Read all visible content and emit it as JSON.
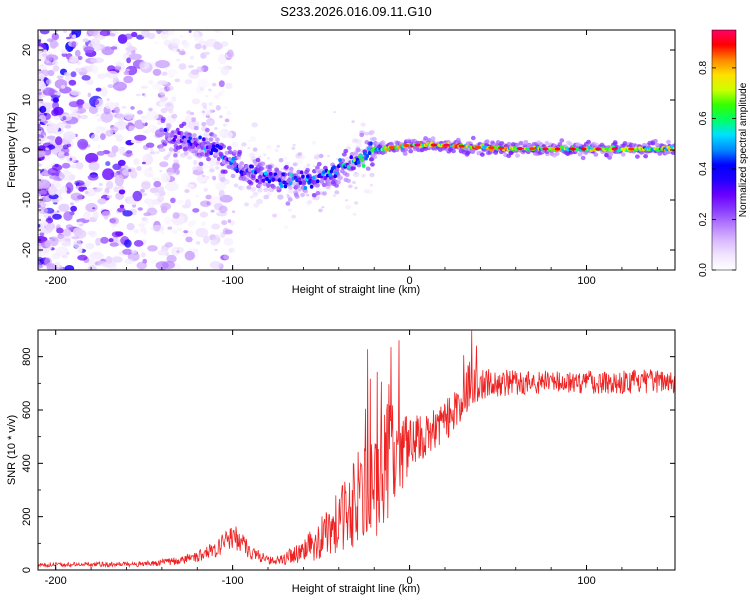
{
  "figure_title": "S233.2026.016.09.11.G10",
  "colors": {
    "snr_line": "#ee2222",
    "axis": "#000000",
    "background": "#ffffff",
    "colormap": [
      "#ffffff",
      "#f0e4ff",
      "#d9b8ff",
      "#b47cff",
      "#8a3cff",
      "#6a00ff",
      "#2200ff",
      "#0000ff",
      "#0088ff",
      "#00e0ff",
      "#00ff66",
      "#33ff00",
      "#ccff00",
      "#ffe000",
      "#ff8800",
      "#ff0000",
      "#ff0066"
    ]
  },
  "chart_data": [
    {
      "type": "heatmap",
      "name": "spectrogram",
      "title": "S233.2026.016.09.11.G10",
      "xlabel": "Height of straight line (km)",
      "ylabel": "Frequency (Hz)",
      "xlim": [
        -210,
        150
      ],
      "ylim": [
        -24,
        24
      ],
      "xticks": [
        -200,
        -100,
        0,
        100
      ],
      "yticks": [
        -20,
        -10,
        0,
        10,
        20
      ],
      "colorbar": {
        "label": "Normalized spectral amplitude",
        "range": [
          0,
          0.95
        ],
        "ticks": [
          0.0,
          0.2,
          0.4,
          0.6,
          0.8
        ]
      },
      "signal_track": {
        "x": [
          -135,
          -125,
          -115,
          -105,
          -95,
          -85,
          -75,
          -65,
          -55,
          -45,
          -38,
          -30,
          -20,
          -10,
          0,
          20,
          40,
          60,
          80,
          100,
          120,
          150
        ],
        "frequency": [
          3,
          2,
          1,
          -1,
          -4,
          -5,
          -6,
          -6,
          -6,
          -5,
          -3,
          -2,
          0,
          0.5,
          1,
          1,
          0.5,
          0.3,
          0.2,
          0.2,
          0.2,
          0.2
        ],
        "amplitude": [
          0.4,
          0.45,
          0.5,
          0.5,
          0.5,
          0.5,
          0.5,
          0.55,
          0.55,
          0.6,
          0.65,
          0.7,
          0.75,
          0.8,
          0.85,
          0.85,
          0.85,
          0.8,
          0.8,
          0.8,
          0.8,
          0.8
        ]
      }
    },
    {
      "type": "line",
      "name": "snr",
      "xlabel": "Height of straight line (km)",
      "ylabel": "SNR (10 * v/v)",
      "xlim": [
        -210,
        150
      ],
      "ylim": [
        0,
        900
      ],
      "xticks": [
        -200,
        -100,
        0,
        100
      ],
      "yticks": [
        0,
        200,
        400,
        600,
        800
      ],
      "envelope": {
        "x": [
          -210,
          -150,
          -130,
          -115,
          -105,
          -98,
          -90,
          -80,
          -70,
          -60,
          -50,
          -40,
          -30,
          -20,
          -15,
          -10,
          0,
          10,
          20,
          30,
          35,
          40,
          50,
          75,
          100,
          125,
          150
        ],
        "mean": [
          20,
          22,
          35,
          60,
          100,
          130,
          70,
          35,
          45,
          70,
          120,
          180,
          260,
          330,
          380,
          430,
          470,
          500,
          560,
          640,
          690,
          700,
          700,
          705,
          705,
          705,
          710
        ],
        "noise": [
          8,
          10,
          15,
          25,
          40,
          55,
          30,
          15,
          25,
          45,
          80,
          120,
          180,
          220,
          240,
          200,
          120,
          80,
          80,
          80,
          90,
          60,
          50,
          45,
          45,
          45,
          45
        ]
      }
    }
  ]
}
